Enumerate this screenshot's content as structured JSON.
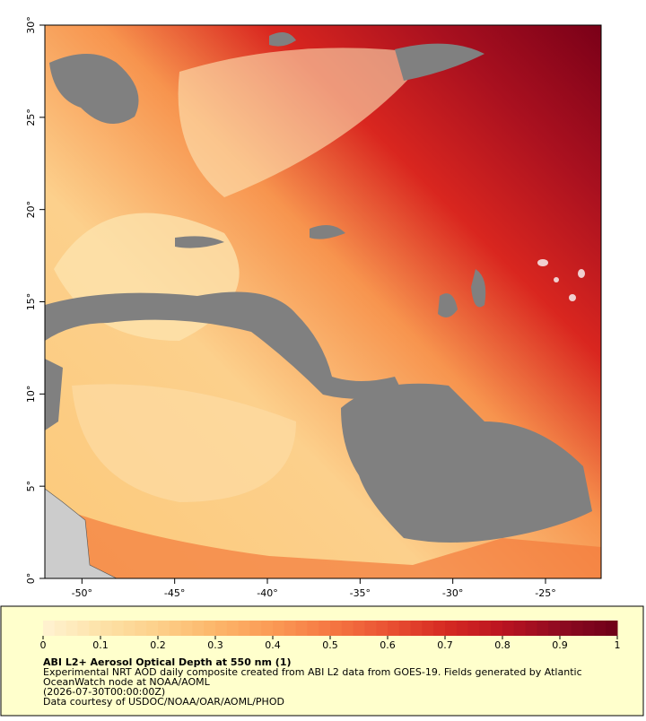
{
  "chart_data": {
    "type": "map",
    "title": "ABI L2+ Aerosol Optical Depth at 550 nm (1)",
    "description": [
      "Experimental NRT AOD daily composite created from ABI L2 data from GOES-19. Fields generated by Atlantic",
      "OceanWatch node at NOAA/AOML",
      "(2026-07-30T00:00:00Z)",
      "Data courtesy of USDOC/NOAA/OAR/AOML/PHOD"
    ],
    "xlim": [
      -52,
      -22
    ],
    "ylim": [
      0,
      30
    ],
    "xticks": [
      {
        "value": -50,
        "label": "-50°"
      },
      {
        "value": -45,
        "label": "-45°"
      },
      {
        "value": -40,
        "label": "-40°"
      },
      {
        "value": -35,
        "label": "-35°"
      },
      {
        "value": -30,
        "label": "-30°"
      },
      {
        "value": -25,
        "label": "-25°"
      }
    ],
    "yticks": [
      {
        "value": 0,
        "label": "0°"
      },
      {
        "value": 5,
        "label": "5°"
      },
      {
        "value": 10,
        "label": "10°"
      },
      {
        "value": 15,
        "label": "15°"
      },
      {
        "value": 20,
        "label": "20°"
      },
      {
        "value": 25,
        "label": "25°"
      },
      {
        "value": 30,
        "label": "30°"
      }
    ],
    "colorbar": {
      "lim": [
        0,
        1
      ],
      "ticks": [
        0,
        0.1,
        0.2,
        0.3,
        0.4,
        0.5,
        0.6,
        0.7,
        0.8,
        0.9,
        1
      ],
      "colormap": [
        "#fff3d2",
        "#fde2a8",
        "#fdd08a",
        "#fcb66a",
        "#fb9a55",
        "#f57843",
        "#ea5233",
        "#d62a22",
        "#bb1421",
        "#8e0a21",
        "#6e0018"
      ]
    }
  }
}
